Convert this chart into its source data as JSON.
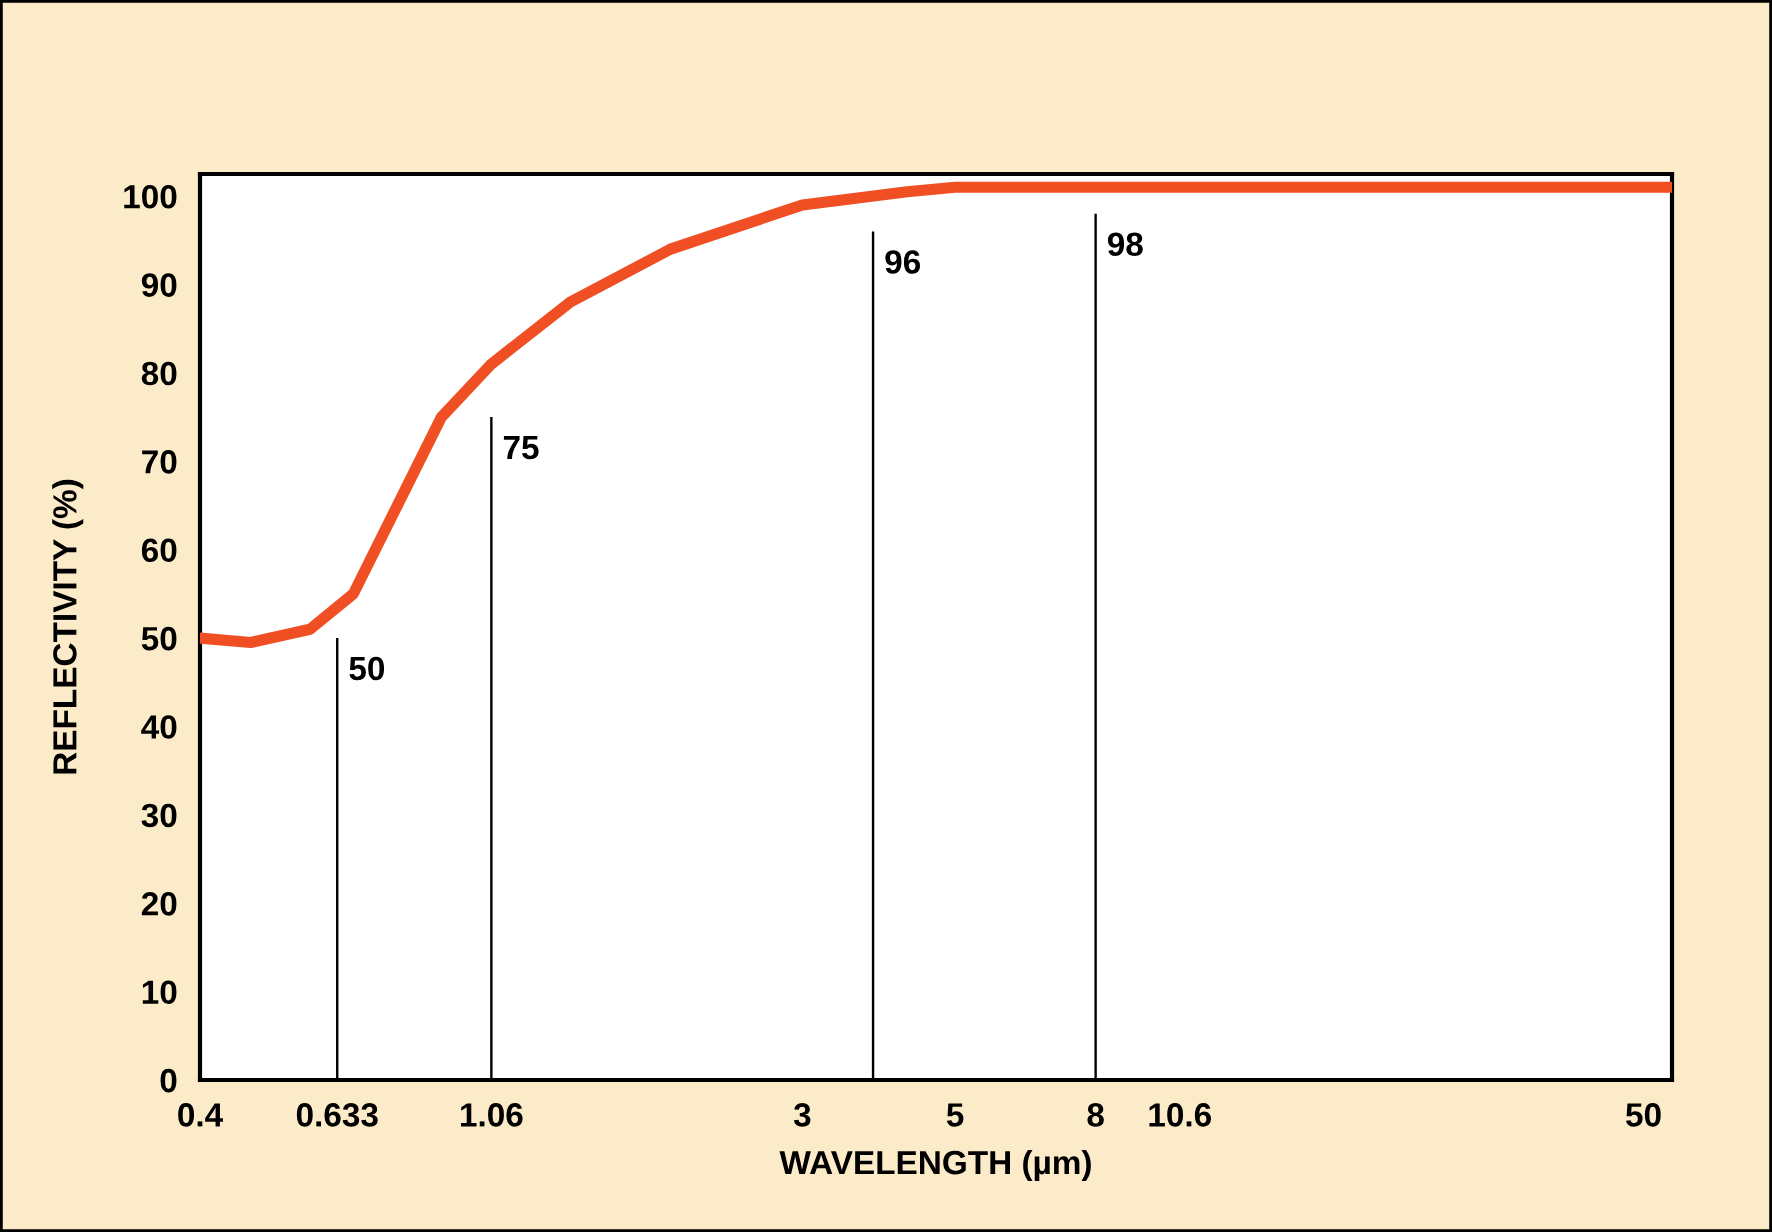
{
  "chart_data": {
    "type": "bar",
    "xlabel": "WAVELENGTH (µm)",
    "ylabel": "REFLECTIVITY (%)",
    "log": "x",
    "xlim": [
      0.4,
      55
    ],
    "xticks": [
      0.4,
      0.633,
      1.06,
      3,
      5,
      8,
      10.6,
      50
    ],
    "ylim": [
      0,
      102.5
    ],
    "yticks": [
      0,
      10,
      20,
      30,
      40,
      50,
      60,
      70,
      80,
      90,
      100
    ],
    "legend": false,
    "marker": "none",
    "line_style": "solid",
    "series": [
      {
        "type": "line",
        "color": "#f04e23",
        "x": [
          0.4,
          0.474,
          0.578,
          0.668,
          0.774,
          0.897,
          1.06,
          1.38,
          1.93,
          3,
          4.26,
          5,
          8,
          55
        ],
        "values": [
          50,
          49.5,
          51,
          55,
          65,
          75,
          81,
          88,
          94,
          99,
          100.5,
          101,
          101,
          101
        ]
      },
      {
        "color": "#000000",
        "x": [
          0.633,
          1.06,
          3.8,
          8
        ],
        "values": [
          50,
          75,
          96,
          98
        ],
        "value_labels": [
          "50",
          "75",
          "96",
          "98"
        ]
      }
    ]
  }
}
